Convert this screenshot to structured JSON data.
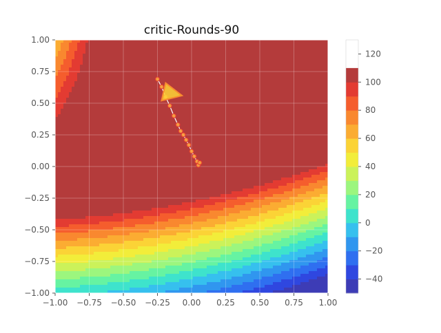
{
  "chart_data": {
    "type": "contour",
    "title": "critic-Rounds-90",
    "xlabel": "",
    "ylabel": "",
    "xlim": [
      -1.0,
      1.0
    ],
    "ylim": [
      -1.0,
      1.0
    ],
    "grid": true,
    "x_ticks": [
      "−1.00",
      "−0.75",
      "−0.50",
      "−0.25",
      "0.00",
      "0.25",
      "0.50",
      "0.75",
      "1.00"
    ],
    "y_ticks": [
      "−1.00",
      "−0.75",
      "−0.50",
      "−0.25",
      "0.00",
      "0.25",
      "0.50",
      "0.75",
      "1.00"
    ],
    "colorbar": {
      "range": [
        -50,
        130
      ],
      "levels": [
        -50,
        -40,
        -30,
        -20,
        -10,
        0,
        10,
        20,
        30,
        40,
        50,
        60,
        70,
        80,
        90,
        100,
        110,
        120,
        130
      ],
      "ticks": [
        -40,
        -20,
        0,
        20,
        40,
        60,
        80,
        100,
        120
      ],
      "tick_labels": [
        "−40",
        "−20",
        "0",
        "20",
        "40",
        "60",
        "80",
        "100",
        "120"
      ],
      "colors": [
        "#3d3cb6",
        "#2f47e0",
        "#2f6ff0",
        "#3096ef",
        "#36c0ee",
        "#3ee3cc",
        "#66f3a2",
        "#9cf67e",
        "#cbf25a",
        "#f2ed3a",
        "#fbd336",
        "#fbac32",
        "#f9882f",
        "#f55d2d",
        "#e33b32",
        "#b43b3b"
      ]
    },
    "field_description": "value contour levels",
    "trajectory": {
      "x": [
        -0.25,
        -0.22,
        -0.19,
        -0.16,
        -0.13,
        -0.1,
        -0.08,
        -0.06,
        -0.04,
        -0.02,
        0.0,
        0.02,
        0.04,
        0.05,
        0.06
      ],
      "y": [
        0.69,
        0.63,
        0.55,
        0.48,
        0.4,
        0.33,
        0.28,
        0.25,
        0.21,
        0.17,
        0.12,
        0.08,
        0.04,
        0.01,
        0.03
      ]
    },
    "arrow_marker": {
      "x": [
        -0.07,
        -0.19,
        -0.22
      ],
      "y": [
        0.56,
        0.66,
        0.52
      ]
    }
  }
}
